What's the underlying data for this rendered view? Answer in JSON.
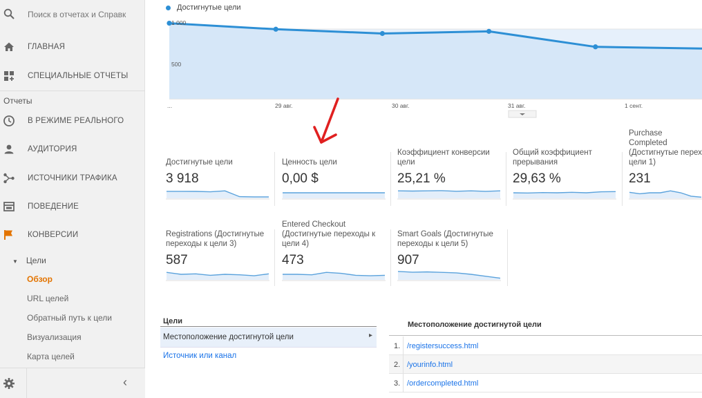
{
  "sidebar": {
    "search_placeholder": "Поиск в отчетах и Справк",
    "items": [
      {
        "label": "ГЛАВНАЯ",
        "icon": "home-icon"
      },
      {
        "label": "СПЕЦИАЛЬНЫЕ ОТЧЕТЫ",
        "icon": "custom-reports-icon"
      }
    ],
    "reports_section": "Отчеты",
    "report_items": [
      {
        "label": "В РЕЖИМЕ РЕАЛЬНОГО",
        "icon": "clock-icon"
      },
      {
        "label": "АУДИТОРИЯ",
        "icon": "person-icon"
      },
      {
        "label": "ИСТОЧНИКИ ТРАФИКА",
        "icon": "acquisition-icon"
      },
      {
        "label": "ПОВЕДЕНИЕ",
        "icon": "behavior-icon"
      },
      {
        "label": "КОНВЕРСИИ",
        "icon": "flag-icon",
        "color": "#e37400"
      }
    ],
    "goals_group": "Цели",
    "goals_subitems": [
      {
        "label": "Обзор",
        "active": true
      },
      {
        "label": "URL целей"
      },
      {
        "label": "Обратный путь к цели"
      },
      {
        "label": "Визуализация"
      },
      {
        "label": "Карта целей"
      }
    ]
  },
  "chart_data": {
    "type": "area",
    "legend": [
      "Достигнутые цели"
    ],
    "color": "#2d8fd5",
    "x_tick_labels": [
      "...",
      "29 авг.",
      "30 авг.",
      "31 авг.",
      "1 сент."
    ],
    "y_tick_labels": [
      "1 000",
      "500"
    ],
    "ylim": [
      0,
      1150
    ],
    "series": [
      {
        "name": "Достигнутые цели",
        "values": [
          880,
          810,
          760,
          785,
          605,
          585
        ]
      }
    ]
  },
  "metrics": [
    {
      "title": "Достигнутые цели",
      "value": "3 918"
    },
    {
      "title": "Ценность цели",
      "value": "0,00 $"
    },
    {
      "title": "Коэффициент конверсии цели",
      "value": "25,21 %"
    },
    {
      "title": "Общий коэффициент прерывания",
      "value": "29,63 %"
    },
    {
      "title": "Purchase Completed (Достигнутые перех цели 1)",
      "value": "231"
    },
    {
      "title": "Registrations (Достигнутые переходы к цели 3)",
      "value": "587"
    },
    {
      "title": "Entered Checkout (Достигнутые переходы к цели 4)",
      "value": "473"
    },
    {
      "title": "Smart Goals (Достигнутые переходы к цели 5)",
      "value": "907"
    }
  ],
  "goals_table": {
    "header": "Цели",
    "selected_row": "Местоположение достигнутой цели",
    "link": "Источник или канал"
  },
  "location_table": {
    "header": "Местоположение достигнутой цели",
    "rows": [
      {
        "num": "1.",
        "url": "/registersuccess.html"
      },
      {
        "num": "2.",
        "url": "/yourinfo.html"
      },
      {
        "num": "3.",
        "url": "/ordercompleted.html"
      }
    ]
  },
  "annotation": {
    "arrow_color": "#e02020"
  }
}
